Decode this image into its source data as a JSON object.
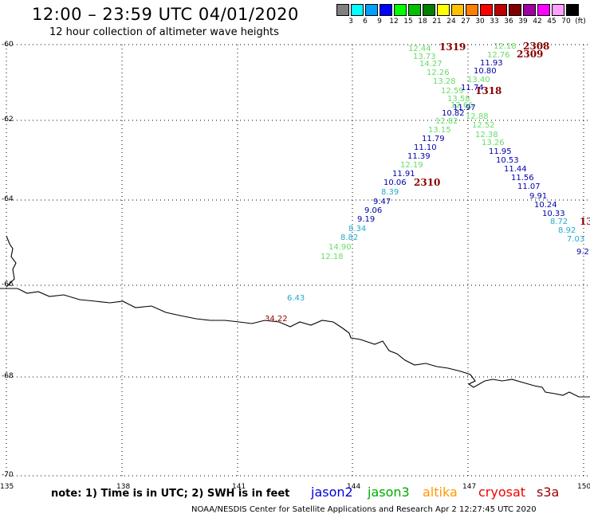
{
  "title": "12:00 – 23:59 UTC 04/01/2020",
  "subtitle": "12 hour collection of altimeter wave heights",
  "color_scale": {
    "labels": [
      "3",
      "6",
      "9",
      "12",
      "15",
      "18",
      "21",
      "24",
      "27",
      "30",
      "33",
      "36",
      "39",
      "42",
      "45",
      "70",
      "(ft)"
    ],
    "colors": [
      "#808080",
      "#00ffff",
      "#00a0ff",
      "#0000ff",
      "#00ff00",
      "#00c000",
      "#008000",
      "#ffff00",
      "#ffc000",
      "#ff8000",
      "#ff0000",
      "#c00000",
      "#800000",
      "#a000a0",
      "#ff00ff",
      "#ffa0ff",
      "#000000"
    ]
  },
  "lat_labels": [
    "-60",
    "-62",
    "-64",
    "-66",
    "-68",
    "-70"
  ],
  "lon_labels": [
    "135",
    "138",
    "141",
    "144",
    "147",
    "150"
  ],
  "note": "note:  1) Time is in UTC;  2) SWH is in feet",
  "satellites": [
    {
      "name": "jason2",
      "color": "#0000dd"
    },
    {
      "name": "jason3",
      "color": "#00aa00"
    },
    {
      "name": "altika",
      "color": "#ff9900"
    },
    {
      "name": "cryosat",
      "color": "#ee0000"
    },
    {
      "name": "s3a",
      "color": "#990000"
    }
  ],
  "credit": "NOAA/NESDIS Center for Satellite Applications and Research     Apr  2 12:27:45 UTC 2020",
  "track_labels": [
    {
      "t": "1319",
      "c": "#880000"
    },
    {
      "t": "2308",
      "c": "#880000"
    },
    {
      "t": "2309",
      "c": "#880000"
    },
    {
      "t": "1318",
      "c": "#880000"
    },
    {
      "t": "2310",
      "c": "#880000"
    },
    {
      "t": "13",
      "c": "#880000"
    }
  ],
  "values": [
    {
      "t": "12.44",
      "c": "#66dd66"
    },
    {
      "t": "13.73",
      "c": "#66dd66"
    },
    {
      "t": "14.27",
      "c": "#66dd66"
    },
    {
      "t": "12.26",
      "c": "#66dd66"
    },
    {
      "t": "13.28",
      "c": "#66dd66"
    },
    {
      "t": "12.59",
      "c": "#66dd66"
    },
    {
      "t": "13.58",
      "c": "#66dd66"
    },
    {
      "t": "12.66",
      "c": "#66dd66"
    },
    {
      "t": "12.82",
      "c": "#66dd66"
    },
    {
      "t": "13.15",
      "c": "#66dd66"
    },
    {
      "t": "11.79",
      "c": "#0000aa"
    },
    {
      "t": "11.10",
      "c": "#0000aa"
    },
    {
      "t": "11.39",
      "c": "#0000aa"
    },
    {
      "t": "12.19",
      "c": "#66dd66"
    },
    {
      "t": "11.91",
      "c": "#0000aa"
    },
    {
      "t": "10.06",
      "c": "#0000aa"
    },
    {
      "t": "8.39",
      "c": "#22aacc"
    },
    {
      "t": "9.47",
      "c": "#0000aa"
    },
    {
      "t": "9.06",
      "c": "#0000aa"
    },
    {
      "t": "9.19",
      "c": "#0000aa"
    },
    {
      "t": "8.34",
      "c": "#22aacc"
    },
    {
      "t": "8.82",
      "c": "#22aacc"
    },
    {
      "t": "14.90",
      "c": "#66dd66"
    },
    {
      "t": "12.18",
      "c": "#66dd66"
    },
    {
      "t": "12.18",
      "c": "#66dd66"
    },
    {
      "t": "12.76",
      "c": "#66dd66"
    },
    {
      "t": "11.93",
      "c": "#0000aa"
    },
    {
      "t": "10.80",
      "c": "#0000aa"
    },
    {
      "t": "13.40",
      "c": "#66dd66"
    },
    {
      "t": "11.74",
      "c": "#0000aa"
    },
    {
      "t": "11.97",
      "c": "#0000aa"
    },
    {
      "t": "10.82",
      "c": "#0000aa"
    },
    {
      "t": "12.88",
      "c": "#66dd66"
    },
    {
      "t": "12.52",
      "c": "#66dd66"
    },
    {
      "t": "12.38",
      "c": "#66dd66"
    },
    {
      "t": "13.26",
      "c": "#66dd66"
    },
    {
      "t": "11.95",
      "c": "#0000aa"
    },
    {
      "t": "10.53",
      "c": "#0000aa"
    },
    {
      "t": "11.44",
      "c": "#0000aa"
    },
    {
      "t": "11.56",
      "c": "#0000aa"
    },
    {
      "t": "11.07",
      "c": "#0000aa"
    },
    {
      "t": "9.91",
      "c": "#0000aa"
    },
    {
      "t": "10.24",
      "c": "#0000aa"
    },
    {
      "t": "10.33",
      "c": "#0000aa"
    },
    {
      "t": "8.72",
      "c": "#22aacc"
    },
    {
      "t": "8.92",
      "c": "#22aacc"
    },
    {
      "t": "7.03",
      "c": "#22aacc"
    },
    {
      "t": "9.2",
      "c": "#0000aa"
    },
    {
      "t": "6.43",
      "c": "#22aacc"
    },
    {
      "t": "34.22",
      "c": "#990000"
    }
  ]
}
